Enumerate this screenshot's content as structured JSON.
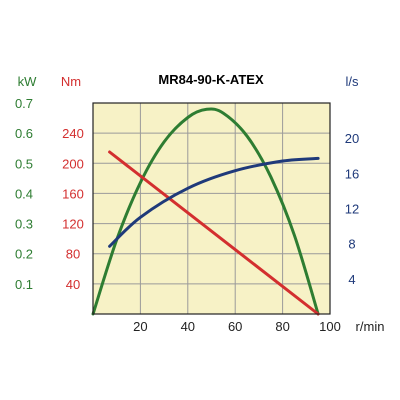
{
  "chart_data": {
    "type": "line",
    "title": "MR84-90-K-ATEX",
    "background_color": "#f7f2c6",
    "x_axis": {
      "unit": "r/min",
      "range": [
        0,
        100
      ],
      "ticks": [
        "20",
        "40",
        "60",
        "80",
        "100"
      ],
      "tick_values": [
        20,
        40,
        60,
        80,
        100
      ]
    },
    "y_axes": [
      {
        "id": "kw",
        "unit": "kW",
        "color": "#2e7d32",
        "range": [
          0,
          0.7
        ],
        "ticks": [
          "0.7",
          "0.6",
          "0.5",
          "0.4",
          "0.3",
          "0.2",
          "0.1"
        ],
        "tick_values": [
          0.7,
          0.6,
          0.5,
          0.4,
          0.3,
          0.2,
          0.1
        ]
      },
      {
        "id": "nm",
        "unit": "Nm",
        "color": "#d32f2f",
        "range": [
          0,
          280
        ],
        "ticks": [
          "240",
          "200",
          "160",
          "120",
          "80",
          "40"
        ],
        "tick_values": [
          240,
          200,
          160,
          120,
          80,
          40
        ]
      },
      {
        "id": "ls",
        "unit": "l/s",
        "color": "#1f3a7a",
        "range": [
          0,
          24
        ],
        "ticks": [
          "20",
          "16",
          "12",
          "8",
          "4"
        ],
        "tick_values": [
          20,
          16,
          12,
          8,
          4
        ]
      }
    ],
    "grid": true,
    "series": [
      {
        "axis": "kw",
        "color": "#2e7d32",
        "x": [
          0,
          10,
          20,
          30,
          40,
          48,
          55,
          65,
          75,
          85,
          95
        ],
        "y": [
          0,
          0.246,
          0.436,
          0.571,
          0.652,
          0.679,
          0.666,
          0.59,
          0.455,
          0.261,
          0
        ]
      },
      {
        "axis": "nm",
        "color": "#d32f2f",
        "x": [
          7,
          95
        ],
        "y": [
          215,
          0
        ]
      },
      {
        "axis": "ls",
        "color": "#1f3a7a",
        "x": [
          7,
          20,
          40,
          60,
          80,
          95
        ],
        "y": [
          7.7,
          11.0,
          14.3,
          16.3,
          17.4,
          17.7
        ]
      }
    ]
  }
}
